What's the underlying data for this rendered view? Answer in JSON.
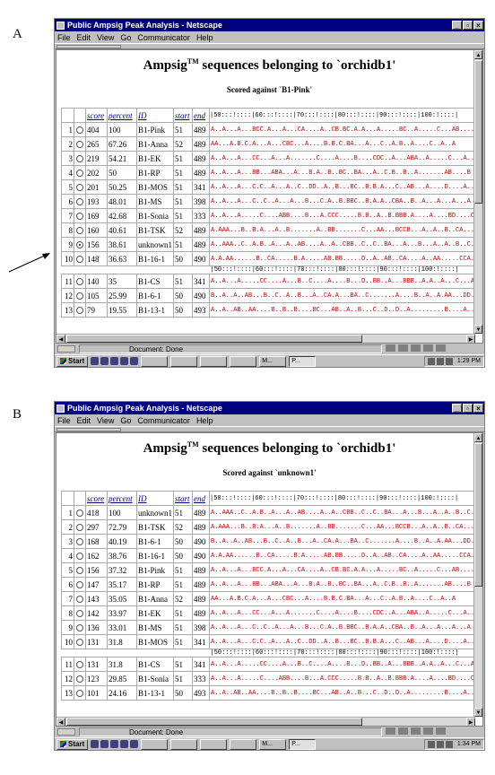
{
  "panels": [
    {
      "letter": "A",
      "window_title": "Public Ampsig Peak Analysis - Netscape",
      "menu": [
        "File",
        "Edit",
        "View",
        "Go",
        "Communicator",
        "Help"
      ],
      "heading_pre": "Ampsig",
      "heading_tm": "TM",
      "heading_post": " sequences belonging to `orchidb1'",
      "subheading": "Scored against `B1-Pink'",
      "columns": [
        "score",
        "percent",
        "ID",
        "start",
        "end"
      ],
      "ruler": "|50:::!::::|60:::!::::|70:::!::::|80:::!::::|90:::!::::|100:!::::|",
      "rows": [
        {
          "n": "1",
          "selected": false,
          "score": "404",
          "percent": "100",
          "id": "B1-Pink",
          "start": "51",
          "end": "489",
          "seq": "A..A...A...BCC.A...A...CA....A..CB.BC.A.A...A.....BC..A.....C...AB....B"
        },
        {
          "n": "2",
          "selected": false,
          "score": "265",
          "percent": "67.26",
          "id": "B1-Anna",
          "start": "52",
          "end": "489",
          "seq": "AA...A.B.C.A...A...CBC...A....B.B.C.BA...A...C..A.B..A....C..A..A"
        },
        {
          "n": "3",
          "selected": false,
          "score": "219",
          "percent": "54.21",
          "id": "B1-EK",
          "start": "51",
          "end": "489",
          "seq": "A..A...A...CC...A...A.......C....A....B....CDC..A...ABA..A.....C...A...A"
        },
        {
          "n": "4",
          "selected": false,
          "score": "202",
          "percent": "50",
          "id": "B1-RP",
          "start": "51",
          "end": "489",
          "seq": "A..A...A...BB...ABA...A...B.A..B..BC..BA...A..C.B..B..A.......AB....B"
        },
        {
          "n": "5",
          "selected": false,
          "score": "201",
          "percent": "50.25",
          "id": "B1-MOS",
          "start": "51",
          "end": "341",
          "seq": "A..A...A...C.C..A...A..C..DD..A..B...BC..B.B.A...C..AB...A....D....A...C"
        },
        {
          "n": "6",
          "selected": false,
          "score": "193",
          "percent": "48.01",
          "id": "B1-MS",
          "start": "51",
          "end": "398",
          "seq": "A..A...A...C..C..A...A...B...C.A..B.BBC..B.A.A..CBA..B..A...A...A...A"
        },
        {
          "n": "7",
          "selected": false,
          "score": "169",
          "percent": "42.68",
          "id": "B1-Sonia",
          "start": "51",
          "end": "333",
          "seq": "A..A...A.....C....ABB....B...A.CCC.....B.B..A..B.BBB.A....A....BD....C"
        },
        {
          "n": "8",
          "selected": false,
          "score": "160",
          "percent": "40.61",
          "id": "B1-TSK",
          "start": "52",
          "end": "489",
          "seq": "A.AAA...B..B.A...A..B.......A..BB.......C...AA...BCCB...A..A..B..CA......"
        },
        {
          "n": "9",
          "selected": true,
          "score": "156",
          "percent": "38.61",
          "id": "unknown1",
          "start": "51",
          "end": "489",
          "seq": "A..AAA..C..A.B..A...A..AB....A..A..CBB..C..C..BA...A...B...A..A..B..C.ACC...."
        },
        {
          "n": "10",
          "selected": false,
          "score": "148",
          "percent": "36.63",
          "id": "B1-16-1",
          "start": "50",
          "end": "490",
          "seq": "A.A.AA......B..CA.....B.A.....AB.BB.....D..A..AB..CA....A..AA.....CCA..B..A"
        },
        {
          "n": "11",
          "selected": false,
          "score": "140",
          "percent": "35",
          "id": "B1-CS",
          "start": "51",
          "end": "341",
          "seq": "A..A...A.....CC....A...B..C....A....B...D..BB..A...BBB..A.A..A...C...A...B"
        },
        {
          "n": "12",
          "selected": false,
          "score": "105",
          "percent": "25.99",
          "id": "B1-6-1",
          "start": "50",
          "end": "490",
          "seq": "B..A..A..AB...B..C..A..B...A..CA.A...BA..C.......A....B..A..A.AA...DD...A...."
        },
        {
          "n": "13",
          "selected": false,
          "score": "79",
          "percent": "19.55",
          "id": "B1-13-1",
          "start": "50",
          "end": "493",
          "seq": "A..A..AB..AA....B..B..B....BC...AB..A..B...C..D..D..A.........B....A.....AB..B..B...."
        }
      ],
      "status": "Document: Done",
      "taskbar": {
        "start": "Start",
        "buttons": [
          "M...",
          "P..."
        ],
        "time": "1:29 PM"
      }
    },
    {
      "letter": "B",
      "window_title": "Public Ampsig Peak Analysis - Netscape",
      "menu": [
        "File",
        "Edit",
        "View",
        "Go",
        "Communicator",
        "Help"
      ],
      "heading_pre": "Ampsig",
      "heading_tm": "TM",
      "heading_post": " sequences belonging to `orchidb1'",
      "subheading": "Scored against `unknown1'",
      "columns": [
        "score",
        "percent",
        "ID",
        "start",
        "end"
      ],
      "ruler": "|50:::!::::|60:::!::::|70:::!::::|80:::!::::|90:::!::::|100:!::::|",
      "rows": [
        {
          "n": "1",
          "selected": false,
          "score": "418",
          "percent": "100",
          "id": "unknown1",
          "start": "51",
          "end": "489",
          "seq": "A..AAA..C..A.B..A...A..AB....A..A..CBB..C..C..BA...A...B...A..A..B..C.ACC...."
        },
        {
          "n": "2",
          "selected": false,
          "score": "297",
          "percent": "72.79",
          "id": "B1-TSK",
          "start": "52",
          "end": "489",
          "seq": "A.AAA...B..B.A...A..B.......A..BB.......C...AA...BCCB...A..A..B..CA......"
        },
        {
          "n": "3",
          "selected": false,
          "score": "168",
          "percent": "40.19",
          "id": "B1-6-1",
          "start": "50",
          "end": "490",
          "seq": "B..A..A..AB...B..C..A..B...A..CA.A...BA..C.......A....B..A..A.AA...DD...A...."
        },
        {
          "n": "4",
          "selected": false,
          "score": "162",
          "percent": "38.76",
          "id": "B1-16-1",
          "start": "50",
          "end": "490",
          "seq": "A.A.AA......B..CA.....B.A.....AB.BB.....D..A..AB..CA....A..AA.....CCA..B..A"
        },
        {
          "n": "5",
          "selected": false,
          "score": "156",
          "percent": "37.32",
          "id": "B1-Pink",
          "start": "51",
          "end": "489",
          "seq": "A..A...A...BCC.A...A...CA....A..CB.BC.A.A...A.....BC..A.....C...AB....B"
        },
        {
          "n": "6",
          "selected": false,
          "score": "147",
          "percent": "35.17",
          "id": "B1-RP",
          "start": "51",
          "end": "489",
          "seq": "A..A...A...BB...ABA...A...B.A..B..BC..BA...A..C.B..B..A.......AB....B"
        },
        {
          "n": "7",
          "selected": false,
          "score": "143",
          "percent": "35.05",
          "id": "B1-Anna",
          "start": "52",
          "end": "489",
          "seq": "AA...A.B.C.A...A...CBC...A....B.B.C.BA...A...C..A.B..A....C..A..A"
        },
        {
          "n": "8",
          "selected": false,
          "score": "142",
          "percent": "33.97",
          "id": "B1-EK",
          "start": "51",
          "end": "489",
          "seq": "A..A...A...CC...A...A.......C....A....B....CDC..A...ABA..A.....C...A...A"
        },
        {
          "n": "9",
          "selected": false,
          "score": "136",
          "percent": "33.01",
          "id": "B1-MS",
          "start": "51",
          "end": "398",
          "seq": "A..A...A...C..C..A...A...B...C.A..B.BBC..B.A.A..CBA..B..A...A...A...A"
        },
        {
          "n": "10",
          "selected": false,
          "score": "131",
          "percent": "31.8",
          "id": "B1-MOS",
          "start": "51",
          "end": "341",
          "seq": "A..A...A...C.C..A...A..C..DD..A..B...BC..B.B.A...C..AB...A....D....A...C"
        },
        {
          "n": "11",
          "selected": false,
          "score": "131",
          "percent": "31.8",
          "id": "B1-CS",
          "start": "51",
          "end": "341",
          "seq": "A..A...A.....CC....A...B..C....A....B...D..BB..A...BBB..A.A..A...C...A...B"
        },
        {
          "n": "12",
          "selected": false,
          "score": "123",
          "percent": "29.85",
          "id": "B1-Sonia",
          "start": "51",
          "end": "333",
          "seq": "A..A...A.....C....ABB....B...A.CCC.....B.B..A..B.BBB.A....A....BD....C"
        },
        {
          "n": "13",
          "selected": false,
          "score": "101",
          "percent": "24.16",
          "id": "B1-13-1",
          "start": "50",
          "end": "493",
          "seq": "A..A..AB..AA....B..B..B....BC...AB..A..B...C..D..D..A.........B....A.....AB..B..B...."
        }
      ],
      "status": "Document: Done",
      "taskbar": {
        "start": "Start",
        "buttons": [
          "M...",
          "P..."
        ],
        "time": "1:34 PM"
      }
    }
  ],
  "colors": {
    "titlebar": "#000080",
    "sequence": "#c00000",
    "chrome": "#c0c0c0"
  }
}
